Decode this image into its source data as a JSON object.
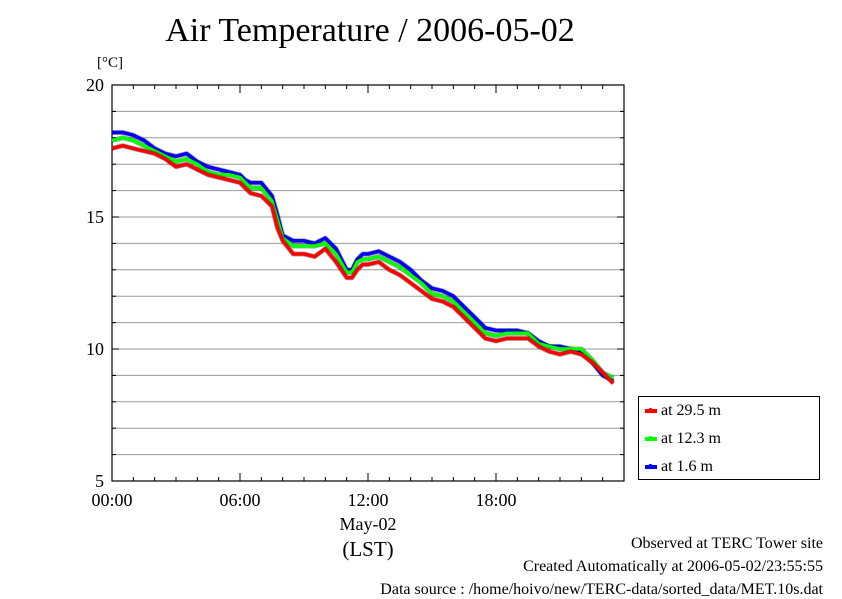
{
  "title": "Air Temperature / 2006-05-02",
  "unit_label": "[°C]",
  "x_date_label": "May-02",
  "x_zone_label": "(LST)",
  "footer": {
    "observed": "Observed at TERC Tower site",
    "created": "Created Automatically at 2006-05-02/23:55:55",
    "source": "Data source : /home/hoivo/new/TERC-data/sorted_data/MET.10s.dat"
  },
  "chart_data": {
    "type": "line",
    "title": "Air Temperature / 2006-05-02",
    "ylabel": "[°C]",
    "xlabel": "(LST)",
    "xlim": [
      0,
      24
    ],
    "ylim": [
      5,
      20
    ],
    "x_ticks": [
      0,
      6,
      12,
      18
    ],
    "x_tick_labels": [
      "00:00",
      "06:00",
      "12:00",
      "18:00"
    ],
    "y_ticks": [
      5,
      10,
      15,
      20
    ],
    "y_tick_labels": [
      "5",
      "10",
      "15",
      "20"
    ],
    "y_minor_step": 1,
    "grid": true,
    "legend_position": "bottom-right-outside",
    "series": [
      {
        "name": "at 29.5 m",
        "color": "#ff0000",
        "x": [
          0,
          0.5,
          1,
          1.5,
          2,
          2.5,
          3,
          3.5,
          4,
          4.5,
          5,
          5.5,
          6,
          6.25,
          6.5,
          7,
          7.5,
          7.75,
          8,
          8.5,
          9,
          9.5,
          10,
          10.5,
          11,
          11.25,
          11.5,
          11.75,
          12,
          12.5,
          13,
          13.5,
          14,
          14.5,
          15,
          15.5,
          16,
          16.5,
          17,
          17.5,
          18,
          18.5,
          19,
          19.5,
          20,
          20.5,
          21,
          21.5,
          22,
          22.5,
          23,
          23.5
        ],
        "y": [
          17.6,
          17.7,
          17.6,
          17.5,
          17.4,
          17.2,
          16.9,
          17.0,
          16.8,
          16.6,
          16.5,
          16.4,
          16.3,
          16.1,
          15.9,
          15.8,
          15.4,
          14.6,
          14.1,
          13.6,
          13.6,
          13.5,
          13.8,
          13.3,
          12.7,
          12.7,
          13.0,
          13.2,
          13.2,
          13.3,
          13.0,
          12.8,
          12.5,
          12.2,
          11.9,
          11.8,
          11.6,
          11.2,
          10.8,
          10.4,
          10.3,
          10.4,
          10.4,
          10.4,
          10.1,
          9.9,
          9.8,
          9.9,
          9.8,
          9.5,
          9.1,
          8.7
        ]
      },
      {
        "name": "at 12.3 m",
        "color": "#00ff00",
        "x": [
          0,
          0.5,
          1,
          1.5,
          2,
          2.5,
          3,
          3.5,
          4,
          4.5,
          5,
          5.5,
          6,
          6.25,
          6.5,
          7,
          7.5,
          7.75,
          8,
          8.5,
          9,
          9.5,
          10,
          10.5,
          11,
          11.25,
          11.5,
          11.75,
          12,
          12.5,
          13,
          13.5,
          14,
          14.5,
          15,
          15.5,
          16,
          16.5,
          17,
          17.5,
          18,
          18.5,
          19,
          19.5,
          20,
          20.5,
          21,
          21.5,
          22,
          22.5,
          23,
          23.5
        ],
        "y": [
          17.9,
          18.0,
          17.9,
          17.7,
          17.5,
          17.3,
          17.1,
          17.2,
          17.0,
          16.7,
          16.6,
          16.6,
          16.5,
          16.3,
          16.1,
          16.1,
          15.6,
          14.9,
          14.2,
          13.9,
          13.9,
          13.9,
          14.0,
          13.6,
          12.9,
          12.9,
          13.3,
          13.4,
          13.4,
          13.5,
          13.3,
          13.1,
          12.8,
          12.5,
          12.1,
          12.0,
          11.8,
          11.4,
          11.0,
          10.6,
          10.5,
          10.6,
          10.6,
          10.6,
          10.2,
          10.1,
          10.0,
          10.0,
          10.0,
          9.6,
          9.1,
          8.9
        ]
      },
      {
        "name": "at 1.6 m",
        "color": "#0000ff",
        "x": [
          0,
          0.5,
          1,
          1.5,
          2,
          2.5,
          3,
          3.5,
          4,
          4.5,
          5,
          5.5,
          6,
          6.25,
          6.5,
          7,
          7.5,
          7.75,
          8,
          8.5,
          9,
          9.5,
          10,
          10.5,
          11,
          11.25,
          11.5,
          11.75,
          12,
          12.5,
          13,
          13.5,
          14,
          14.5,
          15,
          15.5,
          16,
          16.5,
          17,
          17.5,
          18,
          18.5,
          19,
          19.5,
          20,
          20.5,
          21,
          21.5,
          22,
          22.5,
          23,
          23.5
        ],
        "y": [
          18.2,
          18.2,
          18.1,
          17.9,
          17.6,
          17.4,
          17.3,
          17.4,
          17.1,
          16.9,
          16.8,
          16.7,
          16.6,
          16.4,
          16.3,
          16.3,
          15.8,
          15.1,
          14.3,
          14.1,
          14.1,
          14.0,
          14.2,
          13.8,
          13.0,
          13.0,
          13.4,
          13.6,
          13.6,
          13.7,
          13.5,
          13.3,
          13.0,
          12.6,
          12.3,
          12.2,
          12.0,
          11.6,
          11.2,
          10.8,
          10.7,
          10.7,
          10.7,
          10.6,
          10.3,
          10.1,
          10.1,
          10.0,
          9.9,
          9.5,
          9.0,
          8.8
        ]
      }
    ]
  }
}
